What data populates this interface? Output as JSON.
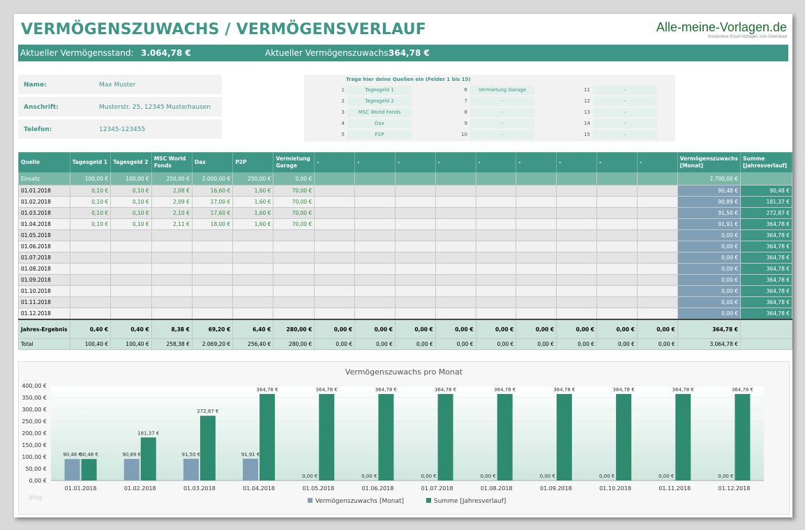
{
  "title": "VERMÖGENSZUWACHS / VERMÖGENSVERLAUF",
  "brand": {
    "name": "Alle-meine-Vorlagen.de",
    "tagline": "Kostenlose Excel-Vorlagen zum Download"
  },
  "status": {
    "stand_label": "Aktueller Vermögensstand:",
    "stand_value": "3.064,78 €",
    "zuwachs_label": "Aktueller Vermögenszuwachs:",
    "zuwachs_value": "364,78 €"
  },
  "info": [
    {
      "label": "Name:",
      "value": "Max Muster"
    },
    {
      "label": "Anschrift:",
      "value": "Musterstr. 25, 12345 Musterhausen"
    },
    {
      "label": "Telefon:",
      "value": "12345-123455"
    }
  ],
  "sources": {
    "header": "Trage hier deine Quellen ein (Felder 1 bis 15)",
    "items": [
      {
        "n": "1",
        "name": "Tagesgeld 1"
      },
      {
        "n": "2",
        "name": "Tagesgeld 2"
      },
      {
        "n": "3",
        "name": "MSC World Fonds"
      },
      {
        "n": "4",
        "name": "Dax"
      },
      {
        "n": "5",
        "name": "P2P"
      },
      {
        "n": "6",
        "name": "Vermietung Garage"
      },
      {
        "n": "7",
        "name": "-"
      },
      {
        "n": "8",
        "name": "-"
      },
      {
        "n": "9",
        "name": "-"
      },
      {
        "n": "10",
        "name": "-"
      },
      {
        "n": "11",
        "name": "-"
      },
      {
        "n": "12",
        "name": "-"
      },
      {
        "n": "13",
        "name": "-"
      },
      {
        "n": "14",
        "name": "-"
      },
      {
        "n": "15",
        "name": "-"
      }
    ]
  },
  "table": {
    "headers": [
      "Quelle",
      "Tagesgeld 1",
      "Tagesgeld 2",
      "MSC World Fonds",
      "Dax",
      "P2P",
      "Vermietung Garage",
      "-",
      "-",
      "-",
      "-",
      "-",
      "-",
      "-",
      "-",
      "-",
      "Vermögenszuwachs [Monat]",
      "Summe [Jahresverlauf]"
    ],
    "einsatz": [
      "Einsatz",
      "100,00 €",
      "100,00 €",
      "250,00 €",
      "2.000,00 €",
      "250,00 €",
      "0,00 €",
      "",
      "",
      "",
      "",
      "",
      "",
      "",
      "",
      "",
      "2.700,00 €",
      ""
    ],
    "rows": [
      {
        "date": "01.01.2018",
        "vals": [
          "0,10 €",
          "0,10 €",
          "2,08 €",
          "16,60 €",
          "1,60 €",
          "70,00 €"
        ],
        "monat": "90,48 €",
        "summe": "90,48 €"
      },
      {
        "date": "01.02.2018",
        "vals": [
          "0,10 €",
          "0,10 €",
          "2,09 €",
          "17,00 €",
          "1,60 €",
          "70,00 €"
        ],
        "monat": "90,89 €",
        "summe": "181,37 €"
      },
      {
        "date": "01.03.2018",
        "vals": [
          "0,10 €",
          "0,10 €",
          "2,10 €",
          "17,60 €",
          "1,60 €",
          "70,00 €"
        ],
        "monat": "91,50 €",
        "summe": "272,87 €"
      },
      {
        "date": "01.04.2018",
        "vals": [
          "0,10 €",
          "0,10 €",
          "2,11 €",
          "18,00 €",
          "1,60 €",
          "70,00 €"
        ],
        "monat": "91,91 €",
        "summe": "364,78 €"
      },
      {
        "date": "01.05.2018",
        "vals": [
          "",
          "",
          "",
          "",
          "",
          ""
        ],
        "monat": "0,00 €",
        "summe": "364,78 €"
      },
      {
        "date": "01.06.2018",
        "vals": [
          "",
          "",
          "",
          "",
          "",
          ""
        ],
        "monat": "0,00 €",
        "summe": "364,78 €"
      },
      {
        "date": "01.07.2018",
        "vals": [
          "",
          "",
          "",
          "",
          "",
          ""
        ],
        "monat": "0,00 €",
        "summe": "364,78 €"
      },
      {
        "date": "01.08.2018",
        "vals": [
          "",
          "",
          "",
          "",
          "",
          ""
        ],
        "monat": "0,00 €",
        "summe": "364,78 €"
      },
      {
        "date": "01.09.2018",
        "vals": [
          "",
          "",
          "",
          "",
          "",
          ""
        ],
        "monat": "0,00 €",
        "summe": "364,78 €"
      },
      {
        "date": "01.10.2018",
        "vals": [
          "",
          "",
          "",
          "",
          "",
          ""
        ],
        "monat": "0,00 €",
        "summe": "364,78 €"
      },
      {
        "date": "01.11.2018",
        "vals": [
          "",
          "",
          "",
          "",
          "",
          ""
        ],
        "monat": "0,00 €",
        "summe": "364,78 €"
      },
      {
        "date": "01.12.2018",
        "vals": [
          "",
          "",
          "",
          "",
          "",
          ""
        ],
        "monat": "0,00 €",
        "summe": "364,78 €"
      }
    ],
    "jahres": [
      "Jahres-Ergebnis",
      "0,40 €",
      "0,40 €",
      "8,38 €",
      "69,20 €",
      "6,40 €",
      "280,00 €",
      "0,00 €",
      "0,00 €",
      "0,00 €",
      "0,00 €",
      "0,00 €",
      "0,00 €",
      "0,00 €",
      "0,00 €",
      "0,00 €",
      "364,78 €",
      ""
    ],
    "total": [
      "Total",
      "100,40 €",
      "100,40 €",
      "258,38 €",
      "2.069,20 €",
      "256,40 €",
      "280,00 €",
      "0,00 €",
      "0,00 €",
      "0,00 €",
      "0,00 €",
      "0,00 €",
      "0,00 €",
      "0,00 €",
      "0,00 €",
      "0,00 €",
      "3.064,78 €",
      ""
    ]
  },
  "blog_mark": "blog",
  "chart_data": {
    "type": "bar",
    "title": "Vermögenszuwachs pro Monat",
    "categories": [
      "01.01.2018",
      "01.02.2018",
      "01.03.2018",
      "01.04.2018",
      "01.05.2018",
      "01.06.2018",
      "01.07.2018",
      "01.08.2018",
      "01.09.2018",
      "01.10.2018",
      "01.11.2018",
      "01.12.2018"
    ],
    "series": [
      {
        "name": "Vermögenszuwachs   [Monat]",
        "color": "#7f9fb6",
        "values": [
          90.48,
          90.89,
          91.5,
          91.91,
          0,
          0,
          0,
          0,
          0,
          0,
          0,
          0
        ],
        "labels": [
          "90,48 €",
          "90,89 €",
          "91,50 €",
          "91,91 €",
          "0,00 €",
          "0,00 €",
          "0,00 €",
          "0,00 €",
          "0,00 €",
          "0,00 €",
          "0,00 €",
          "0,00 €"
        ]
      },
      {
        "name": "Summe   [Jahresverlauf]",
        "color": "#2e8b70",
        "values": [
          90.48,
          181.37,
          272.87,
          364.78,
          364.78,
          364.78,
          364.78,
          364.78,
          364.78,
          364.78,
          364.78,
          364.78
        ],
        "labels": [
          "90,48 €",
          "181,37 €",
          "272,87 €",
          "364,78 €",
          "364,78 €",
          "364,78 €",
          "364,78 €",
          "364,78 €",
          "364,78 €",
          "364,78 €",
          "364,78 €",
          "364,78 €"
        ]
      }
    ],
    "yticks": [
      0,
      50,
      100,
      150,
      200,
      250,
      300,
      350,
      400
    ],
    "ytick_labels": [
      "0,00 €",
      "50,00 €",
      "100,00 €",
      "150,00 €",
      "200,00 €",
      "250,00 €",
      "300,00 €",
      "350,00 €",
      "400,00 €"
    ],
    "ylim": [
      0,
      400
    ],
    "legend_position": "bottom"
  }
}
